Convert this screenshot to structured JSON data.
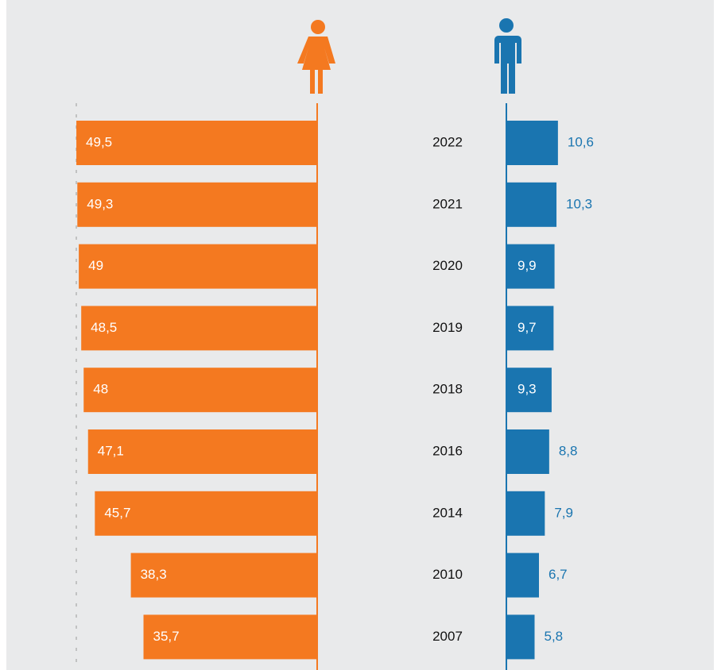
{
  "chart_data": {
    "type": "butterfly",
    "categories": [
      "2022",
      "2021",
      "2020",
      "2019",
      "2018",
      "2016",
      "2014",
      "2010",
      "2007"
    ],
    "series": [
      {
        "color": "#f47920",
        "values": [
          49.5,
          49.3,
          49,
          48.5,
          48,
          47.1,
          45.7,
          38.3,
          35.7
        ],
        "value_labels": [
          "49,5",
          "49,3",
          "49",
          "48,5",
          "48",
          "47,1",
          "45,7",
          "38,3",
          "35,7"
        ]
      },
      {
        "color": "#1a75b0",
        "values": [
          10.6,
          10.3,
          9.9,
          9.7,
          9.3,
          8.8,
          7.9,
          6.7,
          5.8
        ],
        "value_labels": [
          "10,6",
          "10,3",
          "9,9",
          "9,7",
          "9,3",
          "8,8",
          "7,9",
          "6,7",
          "5,8"
        ]
      }
    ]
  }
}
